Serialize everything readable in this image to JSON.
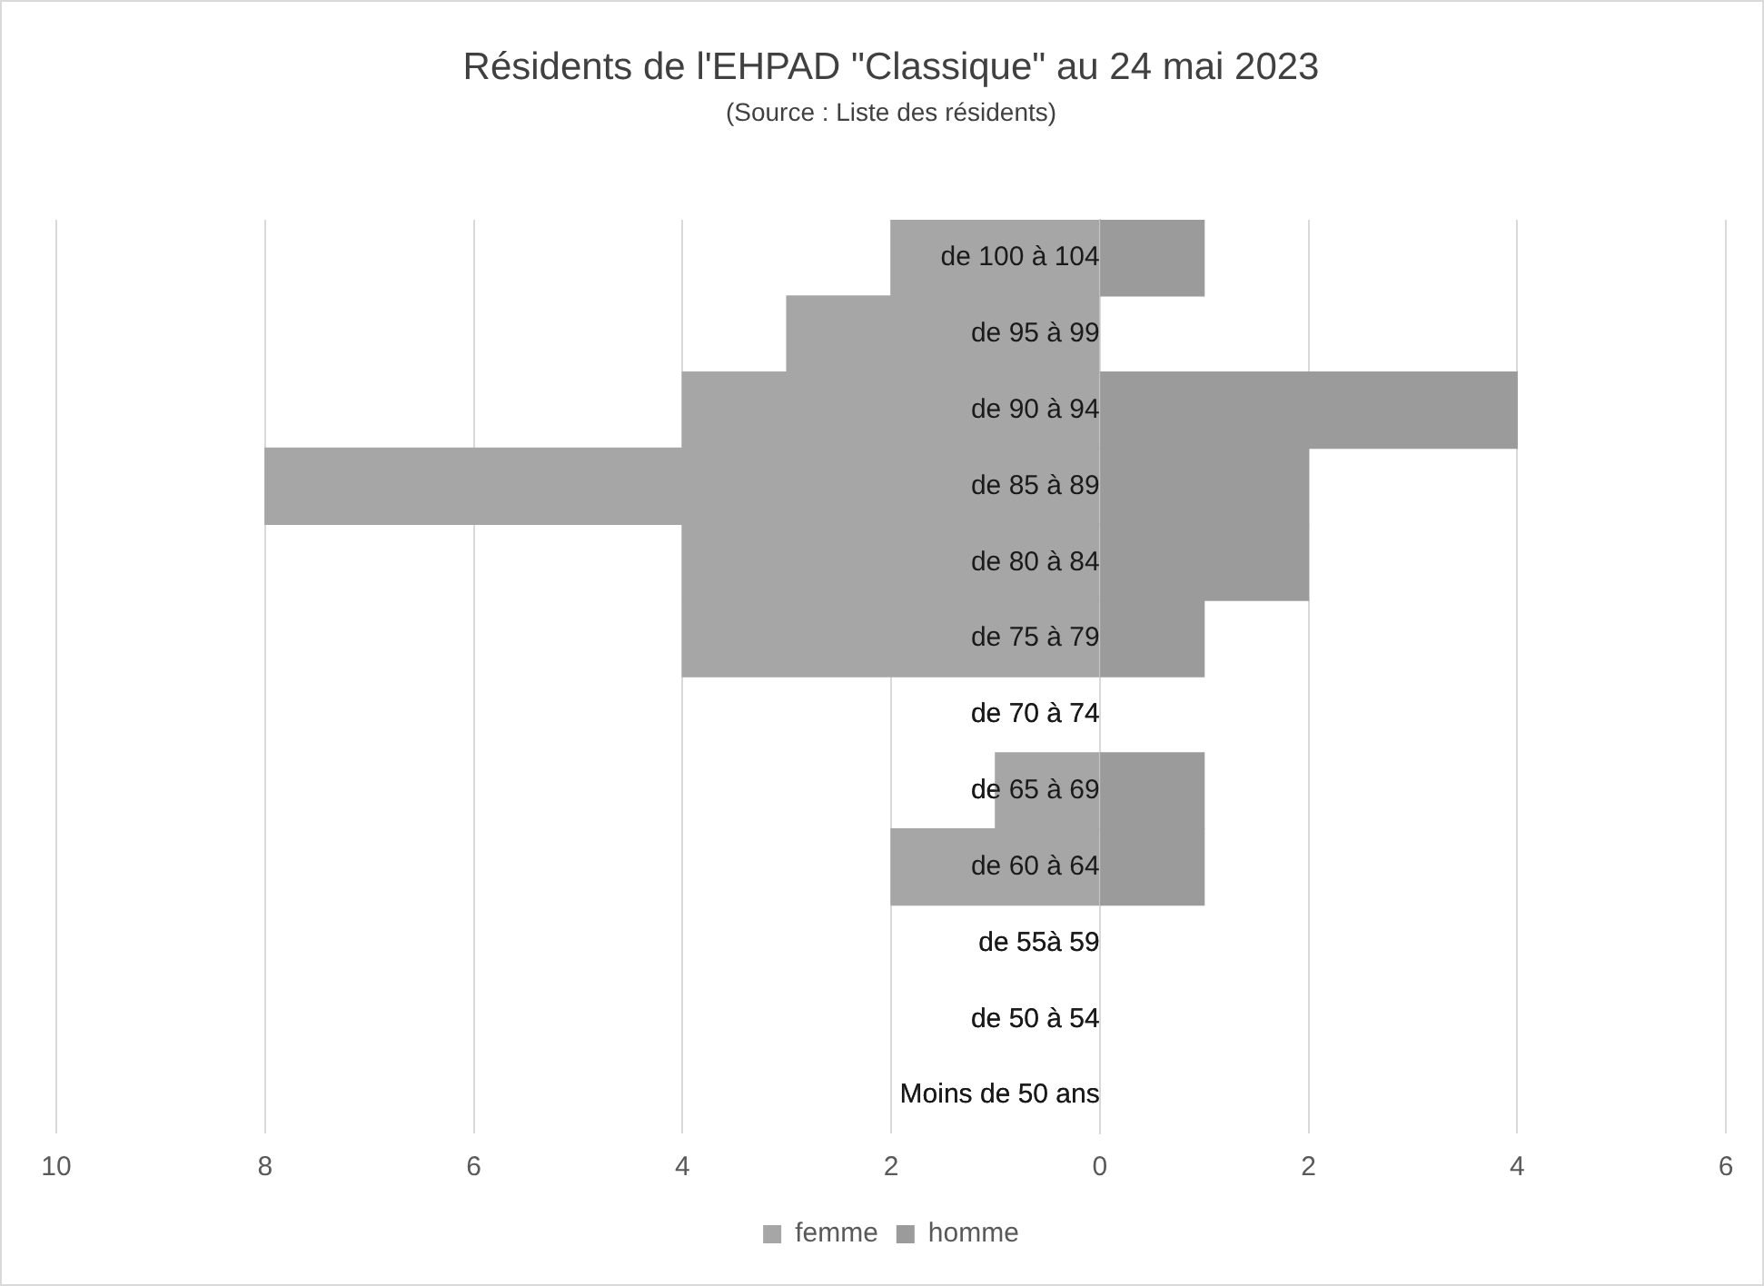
{
  "chart_data": {
    "type": "bar",
    "orientation": "horizontal",
    "title": "Résidents de l'EHPAD \"Classique\" au 24 mai 2023",
    "subtitle": "(Source : Liste des résidents)",
    "categories": [
      "de 100 à 104",
      "de 95 à 99",
      "de 90 à 94",
      "de 85 à 89",
      "de 80 à 84",
      "de 75 à 79",
      "de 70 à 74",
      "de 65 à 69",
      "de 60 à 64",
      "de 55à 59",
      "de 50 à 54",
      "Moins de 50 ans"
    ],
    "series": [
      {
        "name": "femme",
        "color": "#a6a6a6",
        "values": [
          -2,
          -3,
          -4,
          -8,
          -4,
          -4,
          0,
          -1,
          -2,
          0,
          0,
          0
        ]
      },
      {
        "name": "homme",
        "color": "#9b9b9b",
        "values": [
          1,
          0,
          4,
          2,
          2,
          1,
          0,
          1,
          1,
          0,
          0,
          0
        ]
      }
    ],
    "xlim": [
      -10,
      6
    ],
    "xticks": [
      {
        "value": -10,
        "label": "10"
      },
      {
        "value": -8,
        "label": "8"
      },
      {
        "value": -6,
        "label": "6"
      },
      {
        "value": -4,
        "label": "4"
      },
      {
        "value": -2,
        "label": "2"
      },
      0,
      2,
      4,
      6
    ],
    "stacked": true,
    "grid": "x",
    "legend": "bottom"
  }
}
